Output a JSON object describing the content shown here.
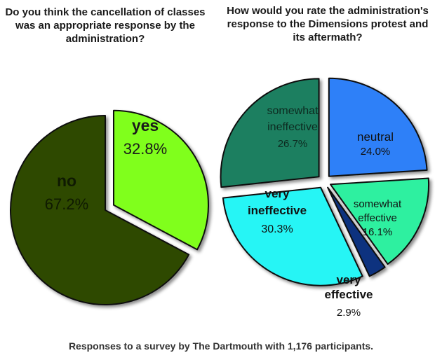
{
  "colors": {
    "dark_green": "#2e4a05",
    "lime": "#80ff1e",
    "dark_teal": "#1f7f60",
    "blue": "#2f80f8",
    "mint": "#2ef0a0",
    "navy": "#11337f",
    "cyan": "#28f5f5"
  },
  "chart_data": [
    {
      "type": "pie",
      "title": "Do you think the cancellation of classes was an appropriate response by the administration?",
      "slices": [
        {
          "name": "yes",
          "value": 32.8,
          "label": "32.8%",
          "color": "#80ff1e",
          "exploded": true
        },
        {
          "name": "no",
          "value": 67.2,
          "label": "67.2%",
          "color": "#2e4a05",
          "exploded": false
        }
      ]
    },
    {
      "type": "pie",
      "title": "How would you rate the administration's response to the Dimensions protest and its aftermath?",
      "slices": [
        {
          "name": "neutral",
          "value": 24.0,
          "label": "24.0%",
          "color": "#2f80f8",
          "exploded": true
        },
        {
          "name": "somewhat effective",
          "value": 16.1,
          "label": "16.1%",
          "color": "#2ef0a0",
          "exploded": true
        },
        {
          "name": "very effective",
          "value": 2.9,
          "label": "2.9%",
          "color": "#11337f",
          "exploded": true
        },
        {
          "name": "very ineffective",
          "value": 30.3,
          "label": "30.3%",
          "color": "#28f5f5",
          "exploded": true
        },
        {
          "name": "somewhat ineffective",
          "value": 26.7,
          "label": "26.7%",
          "color": "#1f7f60",
          "exploded": true
        }
      ]
    }
  ],
  "footer": "Responses to a survey by The Dartmouth with 1,176 participants."
}
